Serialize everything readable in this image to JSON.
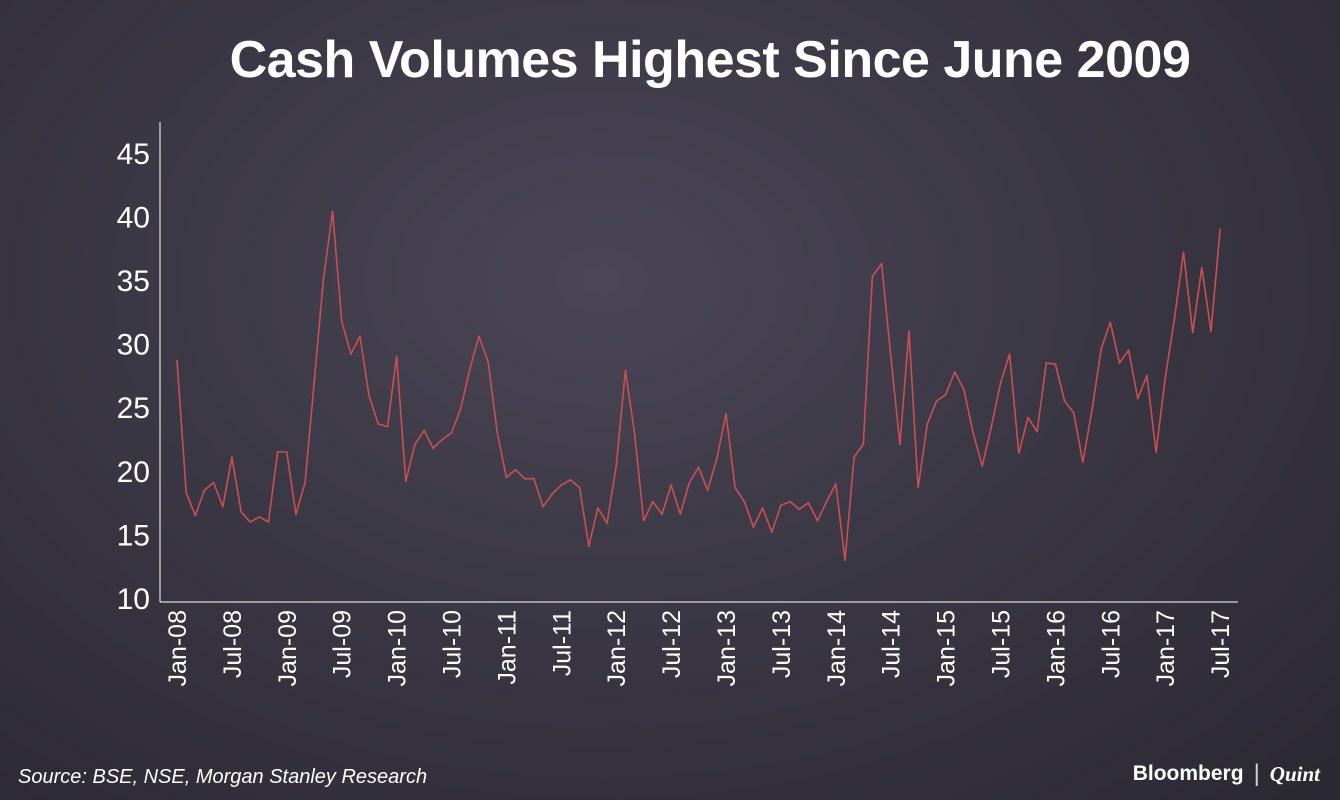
{
  "brand": {
    "bloomberg": "Bloomberg",
    "separator": "|",
    "quint": "Quint"
  },
  "source": "Source: BSE, NSE, Morgan Stanley Research",
  "chart_data": {
    "type": "line",
    "title": "Cash Volumes Highest Since June 2009",
    "xlabel": "",
    "ylabel": "",
    "ylim": [
      10,
      47
    ],
    "yticks": [
      10,
      15,
      20,
      25,
      30,
      35,
      40,
      45
    ],
    "line_color": "#c9504f",
    "axis_color": "#ffffff",
    "xtick_labels": [
      "Jan-08",
      "Jul-08",
      "Jan-09",
      "Jul-09",
      "Jan-10",
      "Jul-10",
      "Jan-11",
      "Jul-11",
      "Jan-12",
      "Jul-12",
      "Jan-13",
      "Jul-13",
      "Jan-14",
      "Jul-14",
      "Jan-15",
      "Jul-15",
      "Jan-16",
      "Jul-16",
      "Jan-17",
      "Jul-17"
    ],
    "series": [
      {
        "name": "Cash volumes",
        "start": "Jan-08",
        "frequency": "monthly",
        "values": [
          28.6,
          18.2,
          16.4,
          18.4,
          19.0,
          17.1,
          21.0,
          16.7,
          15.9,
          16.3,
          15.9,
          21.4,
          21.4,
          16.5,
          19.0,
          27.0,
          35.0,
          40.3,
          31.7,
          29.1,
          30.5,
          25.8,
          23.6,
          23.4,
          28.9,
          19.1,
          22.0,
          23.1,
          21.7,
          22.4,
          22.9,
          24.8,
          27.9,
          30.5,
          28.5,
          22.9,
          19.4,
          20.0,
          19.3,
          19.3,
          17.1,
          18.1,
          18.8,
          19.2,
          18.6,
          14.0,
          17.0,
          15.8,
          20.3,
          27.8,
          22.9,
          16.0,
          17.5,
          16.5,
          18.8,
          16.5,
          19.0,
          20.2,
          18.4,
          20.9,
          24.4,
          18.6,
          17.5,
          15.5,
          17.0,
          15.1,
          17.2,
          17.5,
          16.9,
          17.4,
          16.0,
          17.5,
          18.9,
          12.9,
          21.0,
          22.0,
          35.2,
          36.2,
          29.0,
          22.0,
          30.9,
          18.6,
          23.6,
          25.4,
          25.9,
          27.7,
          26.3,
          22.9,
          20.3,
          23.4,
          26.8,
          29.1,
          21.3,
          24.1,
          23.0,
          28.4,
          28.3,
          25.4,
          24.5,
          20.6,
          24.7,
          29.5,
          31.6,
          28.4,
          29.4,
          25.6,
          27.4,
          21.4,
          27.2,
          31.8,
          37.1,
          30.8,
          35.9,
          30.9,
          38.9
        ]
      }
    ]
  }
}
